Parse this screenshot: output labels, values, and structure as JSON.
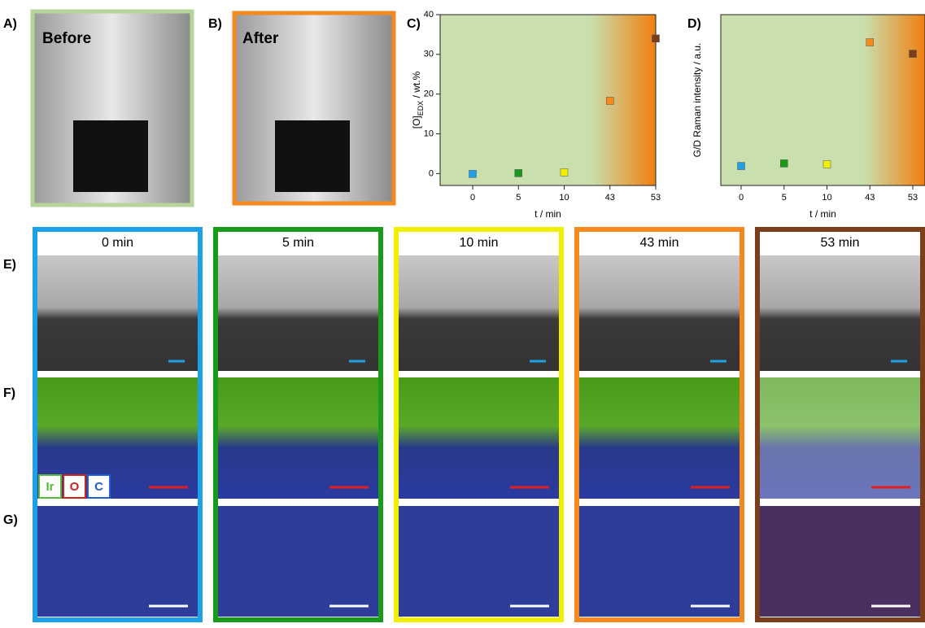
{
  "panel_labels": [
    "A)",
    "B)",
    "C)",
    "D)",
    "E)",
    "F)",
    "G)"
  ],
  "photo_labels": [
    "Before",
    "After"
  ],
  "times": [
    "0 min",
    "5 min",
    "10 min",
    "43 min",
    "53 min"
  ],
  "legend": [
    "Ir",
    "O",
    "C"
  ],
  "chart_data": [
    {
      "type": "scatter",
      "xlabel": "t / min",
      "ylabel": [
        "[O]",
        "EDX",
        " / wt.%"
      ],
      "categories": [
        "0",
        "5",
        "10",
        "43",
        "53"
      ],
      "values": [
        -0.1,
        0.1,
        0.3,
        18.3,
        34.0
      ],
      "colors": [
        "#1ea0e6",
        "#1a9a1a",
        "#f0f000",
        "#f5891f",
        "#7a3f1a"
      ],
      "ylim": [
        -3,
        40
      ],
      "yticks": [
        0,
        10,
        20,
        30,
        40
      ]
    },
    {
      "type": "scatter",
      "xlabel": "t / min",
      "ylabel": [
        "G/D Raman intensity / a.u."
      ],
      "categories": [
        "0",
        "5",
        "10",
        "43",
        "53"
      ],
      "values": [
        1.14,
        1.29,
        1.24,
        8.38,
        7.71
      ],
      "colors": [
        "#1ea0e6",
        "#1a9a1a",
        "#f0f000",
        "#f5891f",
        "#7a3f1a"
      ],
      "ylim": [
        0,
        10
      ]
    }
  ]
}
